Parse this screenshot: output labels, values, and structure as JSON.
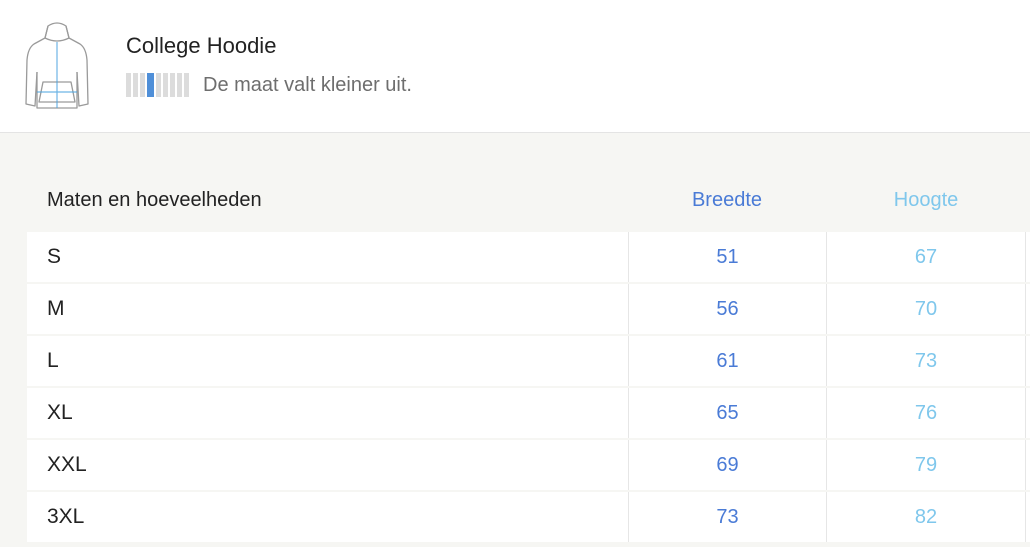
{
  "product": {
    "title": "College Hoodie",
    "fit_text": "De maat valt kleiner uit.",
    "fit_scale": {
      "segments": 9,
      "active_index": 3
    },
    "icon": "hoodie-icon"
  },
  "table": {
    "headers": {
      "sizes": "Maten en hoeveelheden",
      "width": "Breedte",
      "height": "Hoogte"
    },
    "rows": [
      {
        "size": "S",
        "width": "51",
        "height": "67"
      },
      {
        "size": "M",
        "width": "56",
        "height": "70"
      },
      {
        "size": "L",
        "width": "61",
        "height": "73"
      },
      {
        "size": "XL",
        "width": "65",
        "height": "76"
      },
      {
        "size": "XXL",
        "width": "69",
        "height": "79"
      },
      {
        "size": "3XL",
        "width": "73",
        "height": "82"
      }
    ]
  },
  "colors": {
    "width_accent": "#4a7bd6",
    "height_accent": "#7fc7ec",
    "fit_marker": "#4f8fd8"
  }
}
